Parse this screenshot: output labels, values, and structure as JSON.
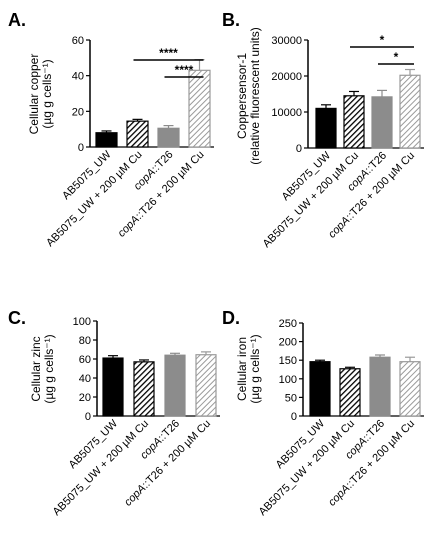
{
  "chart_data": [
    {
      "panel_letter": "A.",
      "type": "bar",
      "ylabel_line1": "Cellular copper",
      "ylabel_line2": "(µg g cells⁻¹)",
      "ylim": [
        0,
        60
      ],
      "yticks": [
        0,
        20,
        40,
        60
      ],
      "categories": [
        "AB5075_UW",
        "AB5075_UW + 200 µM Cu",
        "copA::T26",
        "copA::T26 + 200 µM Cu"
      ],
      "values": [
        8,
        14.5,
        10.5,
        43
      ],
      "errors": [
        1,
        1,
        1.5,
        6
      ],
      "significance": [
        {
          "from": 1,
          "to": 3,
          "label": "****"
        },
        {
          "from": 2,
          "to": 3,
          "label": "****"
        }
      ]
    },
    {
      "panel_letter": "B.",
      "type": "bar",
      "ylabel_line1": "Coppersensor-1",
      "ylabel_line2": "(relative fluorescent units)",
      "ylim": [
        0,
        30000
      ],
      "yticks": [
        0,
        10000,
        20000,
        30000
      ],
      "categories": [
        "AB5075_UW",
        "AB5075_UW + 200 µM Cu",
        "copA::T26",
        "copA::T26 + 200 µM Cu"
      ],
      "values": [
        11000,
        14500,
        14200,
        20200
      ],
      "errors": [
        1000,
        1200,
        1800,
        1600
      ],
      "significance": [
        {
          "from": 1,
          "to": 3,
          "label": "*"
        },
        {
          "from": 2,
          "to": 3,
          "label": "*"
        }
      ]
    },
    {
      "panel_letter": "C.",
      "type": "bar",
      "ylabel_line1": "Cellular zinc",
      "ylabel_line2": "(µg g cells⁻¹)",
      "ylim": [
        0,
        100
      ],
      "yticks": [
        0,
        20,
        40,
        60,
        80,
        100
      ],
      "categories": [
        "AB5075_UW",
        "AB5075_UW + 200 µM Cu",
        "copA::T26",
        "copA::T26 + 200 µM Cu"
      ],
      "values": [
        61,
        57,
        64,
        64.5
      ],
      "errors": [
        2.5,
        2,
        2,
        3
      ],
      "significance": []
    },
    {
      "panel_letter": "D.",
      "type": "bar",
      "ylabel_line1": "Cellular iron",
      "ylabel_line2": "(µg g cells⁻¹)",
      "ylim": [
        0,
        250
      ],
      "yticks": [
        0,
        50,
        100,
        150,
        200,
        250
      ],
      "categories": [
        "AB5075_UW",
        "AB5075_UW + 200 µM Cu",
        "copA::T26",
        "copA::T26 + 200 µM Cu"
      ],
      "values": [
        146,
        127,
        158,
        146
      ],
      "errors": [
        4,
        4,
        6,
        12
      ],
      "significance": []
    }
  ],
  "styles": {
    "bar_fills": [
      "#000000",
      "hatch-dark",
      "#8c8c8c",
      "hatch-light"
    ],
    "hatch_dark_bg": "#ffffff",
    "hatch_dark_line": "#000000",
    "hatch_light_bg": "#ffffff",
    "hatch_light_line": "#9a9a9a",
    "solid_gray": "#8c8c8c",
    "ink": "#000000"
  }
}
